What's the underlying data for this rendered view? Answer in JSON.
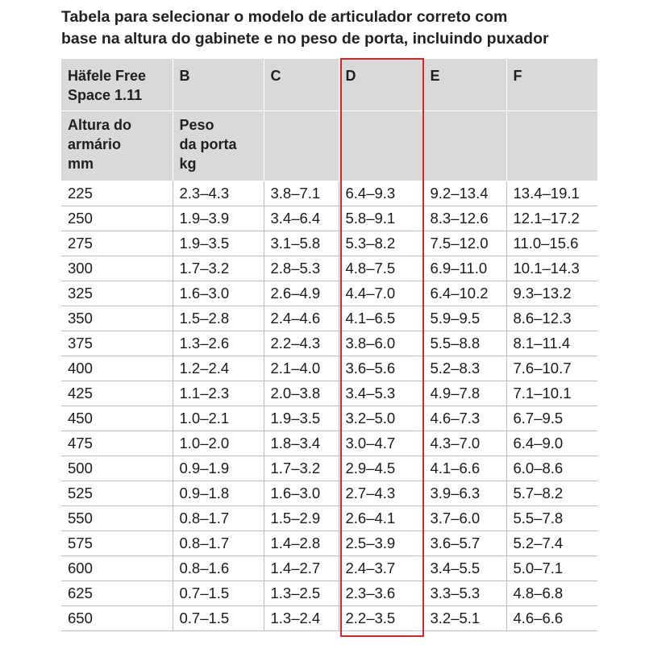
{
  "title": {
    "line1": "Tabela para selecionar o modelo de articulador correto com",
    "line2": "base na altura do gabinete e no peso de porta, incluindo puxador"
  },
  "header_row1": {
    "model_line1": "Häfele Free",
    "model_line2": "Space 1.11",
    "cols": [
      "B",
      "C",
      "D",
      "E",
      "F"
    ]
  },
  "header_row2": {
    "height_line1": "Altura do",
    "height_line2": "armário",
    "height_line3": "mm",
    "weight_line1": "Peso",
    "weight_line2": "da porta",
    "weight_line3": "kg"
  },
  "highlight": {
    "column": "D",
    "color": "#d3272c"
  },
  "colors": {
    "header_bg": "#d9d9d9",
    "grid_line": "#bdbdbd"
  },
  "rows": [
    [
      "225",
      "2.3–4.3",
      "3.8–7.1",
      "6.4–9.3",
      "9.2–13.4",
      "13.4–19.1"
    ],
    [
      "250",
      "1.9–3.9",
      "3.4–6.4",
      "5.8–9.1",
      "8.3–12.6",
      "12.1–17.2"
    ],
    [
      "275",
      "1.9–3.5",
      "3.1–5.8",
      "5.3–8.2",
      "7.5–12.0",
      "11.0–15.6"
    ],
    [
      "300",
      "1.7–3.2",
      "2.8–5.3",
      "4.8–7.5",
      "6.9–11.0",
      "10.1–14.3"
    ],
    [
      "325",
      "1.6–3.0",
      "2.6–4.9",
      "4.4–7.0",
      "6.4–10.2",
      "9.3–13.2"
    ],
    [
      "350",
      "1.5–2.8",
      "2.4–4.6",
      "4.1–6.5",
      "5.9–9.5",
      "8.6–12.3"
    ],
    [
      "375",
      "1.3–2.6",
      "2.2–4.3",
      "3.8–6.0",
      "5.5–8.8",
      "8.1–11.4"
    ],
    [
      "400",
      "1.2–2.4",
      "2.1–4.0",
      "3.6–5.6",
      "5.2–8.3",
      "7.6–10.7"
    ],
    [
      "425",
      "1.1–2.3",
      "2.0–3.8",
      "3.4–5.3",
      "4.9–7.8",
      "7.1–10.1"
    ],
    [
      "450",
      "1.0–2.1",
      "1.9–3.5",
      "3.2–5.0",
      "4.6–7.3",
      "6.7–9.5"
    ],
    [
      "475",
      "1.0–2.0",
      "1.8–3.4",
      "3.0–4.7",
      "4.3–7.0",
      "6.4–9.0"
    ],
    [
      "500",
      "0.9–1.9",
      "1.7–3.2",
      "2.9–4.5",
      "4.1–6.6",
      "6.0–8.6"
    ],
    [
      "525",
      "0.9–1.8",
      "1.6–3.0",
      "2.7–4.3",
      "3.9–6.3",
      "5.7–8.2"
    ],
    [
      "550",
      "0.8–1.7",
      "1.5–2.9",
      "2.6–4.1",
      "3.7–6.0",
      "5.5–7.8"
    ],
    [
      "575",
      "0.8–1.7",
      "1.4–2.8",
      "2.5–3.9",
      "3.6–5.7",
      "5.2–7.4"
    ],
    [
      "600",
      "0.8–1.6",
      "1.4–2.7",
      "2.4–3.7",
      "3.4–5.5",
      "5.0–7.1"
    ],
    [
      "625",
      "0.7–1.5",
      "1.3–2.5",
      "2.3–3.6",
      "3.3–5.3",
      "4.8–6.8"
    ],
    [
      "650",
      "0.7–1.5",
      "1.3–2.4",
      "2.2–3.5",
      "3.2–5.1",
      "4.6–6.6"
    ]
  ]
}
